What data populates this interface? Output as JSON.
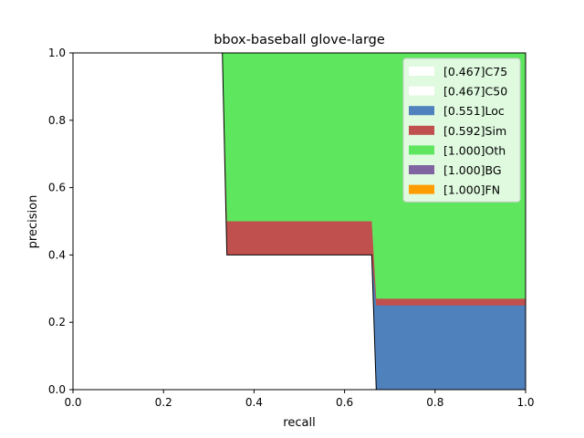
{
  "chart_data": {
    "type": "area",
    "title": "bbox-baseball glove-large",
    "xlabel": "recall",
    "ylabel": "precision",
    "xlim": [
      0,
      1
    ],
    "ylim": [
      0,
      1
    ],
    "xticks": [
      "0.0",
      "0.2",
      "0.4",
      "0.6",
      "0.8",
      "1.0"
    ],
    "yticks": [
      "0.0",
      "0.2",
      "0.4",
      "0.6",
      "0.8",
      "1.0"
    ],
    "grid": false,
    "legend_position": "top-right",
    "series": [
      {
        "name": "[0.467]C75",
        "color": "#ffffff",
        "x": [
          0,
          0.33,
          0.34,
          0.66,
          0.67,
          1.0
        ],
        "y": [
          1.0,
          1.0,
          0.4,
          0.4,
          0.0,
          0.0
        ]
      },
      {
        "name": "[0.467]C50",
        "color": "#ffffff",
        "x": [
          0,
          0.33,
          0.34,
          0.66,
          0.67,
          1.0
        ],
        "y": [
          1.0,
          1.0,
          0.4,
          0.4,
          0.0,
          0.0
        ]
      },
      {
        "name": "[0.551]Loc",
        "color": "#4f81bd",
        "x": [
          0,
          0.33,
          0.34,
          0.66,
          0.67,
          1.0
        ],
        "y": [
          1.0,
          1.0,
          0.4,
          0.4,
          0.25,
          0.25
        ]
      },
      {
        "name": "[0.592]Sim",
        "color": "#c0504d",
        "x": [
          0,
          0.33,
          0.34,
          0.66,
          0.67,
          1.0
        ],
        "y": [
          1.0,
          1.0,
          0.5,
          0.5,
          0.27,
          0.27
        ]
      },
      {
        "name": "[1.000]Oth",
        "color": "#5ee65e",
        "x": [
          0,
          1.0
        ],
        "y": [
          1.0,
          1.0
        ]
      },
      {
        "name": "[1.000]BG",
        "color": "#8064a2",
        "x": [
          0,
          1.0
        ],
        "y": [
          1.0,
          1.0
        ]
      },
      {
        "name": "[1.000]FN",
        "color": "#ff9c00",
        "x": [
          0,
          1.0
        ],
        "y": [
          1.0,
          1.0
        ]
      }
    ]
  }
}
